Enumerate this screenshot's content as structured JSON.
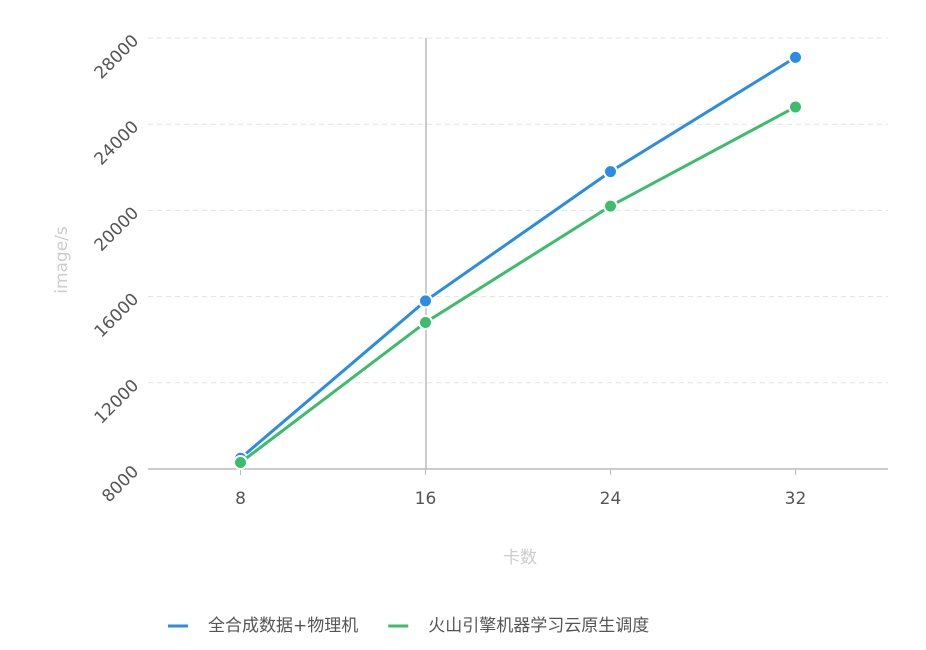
{
  "chart_data": {
    "type": "line",
    "x_label": "卡数",
    "y_label": "image/s",
    "categories": [
      "8",
      "16",
      "24",
      "32"
    ],
    "series": [
      {
        "name": "全合成数据+物理机",
        "color": "#2b8ce6",
        "values": [
          8500,
          15800,
          21800,
          27100
        ]
      },
      {
        "name": "火山引擎机器学习云原生调度",
        "color": "#3bbd6c",
        "values": [
          8300,
          14800,
          20200,
          24800
        ]
      }
    ],
    "ylim": [
      8000,
      28000
    ],
    "yticks": [
      8000,
      12000,
      16000,
      20000,
      24000,
      28000
    ],
    "grid": true,
    "legend": "bottom"
  }
}
